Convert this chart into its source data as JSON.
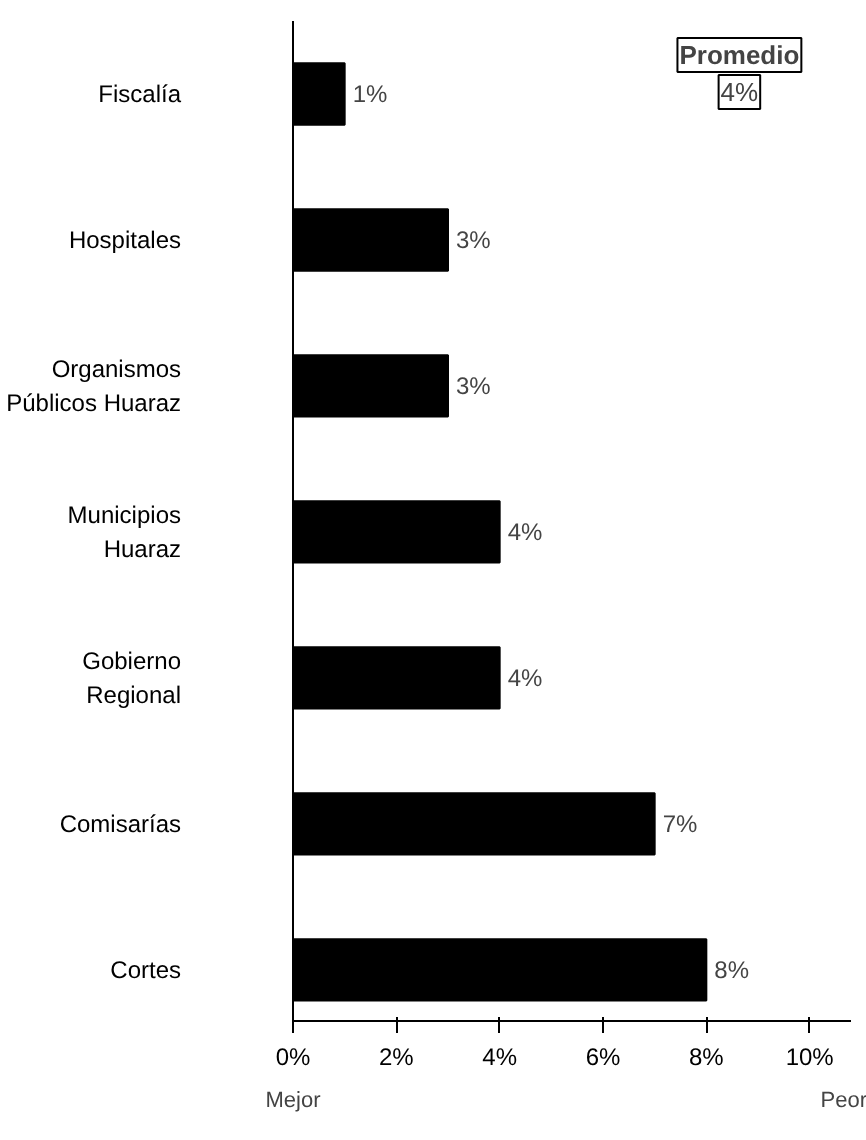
{
  "chart_data": {
    "type": "bar",
    "orientation": "horizontal",
    "categories": [
      "Fiscalía",
      "Hospitales",
      "Organismos\nPúblicos Huaraz",
      "Municipios\nHuaraz",
      "Gobierno\nRegional",
      "Comisarías",
      "Cortes"
    ],
    "series": [
      {
        "color": "#000000",
        "values": [
          1,
          3,
          3,
          4,
          4,
          7,
          8
        ],
        "value_labels": [
          "1%",
          "3%",
          "3%",
          "4%",
          "4%",
          "7%",
          "8%"
        ]
      }
    ],
    "xlim": [
      0,
      10.8
    ],
    "xticks": [
      {
        "value": 0,
        "label": "0%"
      },
      {
        "value": 2,
        "label": "2%"
      },
      {
        "value": 4,
        "label": "4%"
      },
      {
        "value": 6,
        "label": "6%"
      },
      {
        "value": 8,
        "label": "8%"
      },
      {
        "value": 10,
        "label": "10%"
      }
    ],
    "grid": false,
    "annotations": [
      "Promedio",
      "4%",
      "Mejor",
      "Peor"
    ]
  }
}
